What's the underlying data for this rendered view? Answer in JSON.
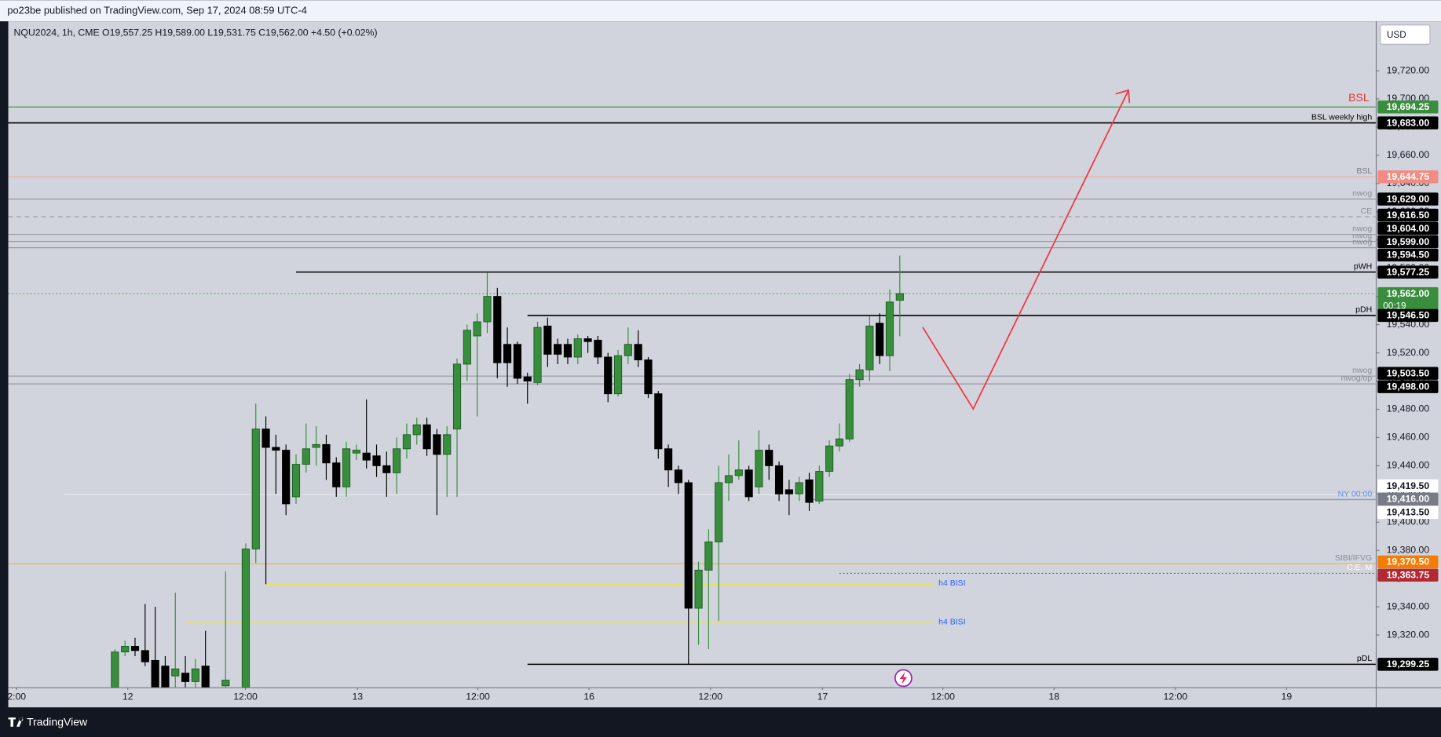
{
  "chart_data": {
    "type": "candlestick",
    "header": "po23be published on TradingView.com, Sep 17, 2024 08:59 UTC-4",
    "legend": "NQU2024, 1h, CME  O19,557.25  H19,589.00  L19,531.75  C19,562.00  +4.50 (+0.02%)",
    "currency": "USD",
    "footer": "TradingView",
    "annotations": [
      "BSL"
    ],
    "up_color": "#388e3c",
    "down_color": "#000000",
    "x": [
      0,
      1,
      2,
      3,
      4,
      5,
      6,
      7,
      8,
      9,
      11,
      13,
      14,
      15,
      16,
      17,
      18,
      19,
      20,
      21,
      22,
      23,
      24,
      25,
      26,
      27,
      28,
      29,
      30,
      31,
      32,
      33,
      34,
      35,
      36,
      37,
      38,
      39,
      40,
      41,
      42,
      43,
      44,
      45,
      46,
      47,
      48,
      49,
      50,
      51,
      52,
      53,
      54,
      55,
      56,
      57,
      58,
      59,
      60,
      61,
      62,
      63,
      64,
      65,
      66,
      67,
      68,
      69,
      70,
      71,
      72,
      73,
      74,
      75,
      76,
      77,
      78
    ],
    "open": [
      19283,
      19308,
      19312,
      19309,
      19302,
      19298,
      19291,
      19293,
      19287,
      19298,
      19284,
      19283,
      19381,
      19466,
      19453,
      19451,
      19418,
      19441,
      19453,
      19455,
      19442,
      19425,
      19449,
      19449,
      19447,
      19440,
      19435,
      19452,
      19462,
      19469,
      19462,
      19448,
      19466,
      19512,
      19532,
      19542,
      19560,
      19526,
      19526,
      19503,
      19499,
      19539,
      19526,
      19526,
      19517,
      19530,
      19529,
      19517,
      19491,
      19518,
      19526,
      19515,
      19491,
      19452,
      19437,
      19428,
      19339,
      19366,
      19386,
      19428,
      19433,
      19437,
      19425,
      19451,
      19440,
      19423,
      19420,
      19430,
      19415,
      19436,
      19454,
      19459,
      19501,
      19508,
      19541,
      19518,
      19557.25
    ],
    "high": [
      19310,
      19316,
      19318,
      19342,
      19340,
      19305,
      19350,
      19305,
      19303,
      19323,
      19365,
      19385,
      19484,
      19475,
      19462,
      19455,
      19448,
      19470,
      19468,
      19462,
      19446,
      19457,
      19455,
      19487,
      19455,
      19450,
      19460,
      19470,
      19474,
      19474,
      19466,
      19468,
      19516,
      19540,
      19548,
      19577,
      19566,
      19538,
      19528,
      19506,
      19542,
      19545,
      19530,
      19530,
      19533,
      19532,
      19532,
      19520,
      19522,
      19538,
      19536,
      19517,
      19493,
      19455,
      19440,
      19430,
      19372,
      19395,
      19440,
      19448,
      19458,
      19440,
      19465,
      19455,
      19443,
      19430,
      19432,
      19435,
      19440,
      19458,
      19470,
      19505,
      19512,
      19546,
      19548,
      19565,
      19589
    ],
    "low": [
      19280,
      19305,
      19305,
      19298,
      19280,
      19280,
      19283,
      19282,
      19283,
      19280,
      19280,
      19280,
      19371,
      19356,
      19420,
      19405,
      19413,
      19435,
      19440,
      19430,
      19418,
      19418,
      19444,
      19438,
      19432,
      19418,
      19420,
      19445,
      19455,
      19447,
      19405,
      19418,
      19418,
      19500,
      19475,
      19534,
      19502,
      19496,
      19498,
      19484,
      19497,
      19510,
      19512,
      19512,
      19512,
      19520,
      19512,
      19485,
      19489,
      19512,
      19510,
      19488,
      19445,
      19425,
      19420,
      19299.25,
      19313,
      19310,
      19330,
      19415,
      19430,
      19415,
      19420,
      19430,
      19415,
      19405,
      19415,
      19408,
      19413,
      19432,
      19450,
      19457,
      19496,
      19500,
      19512,
      19507,
      19531.75
    ],
    "close": [
      19308,
      19312,
      19309,
      19301,
      19283,
      19283,
      19296,
      19287,
      19296,
      19283,
      19288,
      19381,
      19466,
      19453,
      19451,
      19413,
      19441,
      19452,
      19455,
      19442,
      19425,
      19452,
      19451,
      19444,
      19440,
      19435,
      19452,
      19462,
      19469,
      19452,
      19448,
      19462,
      19512,
      19536,
      19542,
      19560,
      19513,
      19513,
      19502,
      19500,
      19538,
      19519,
      19519,
      19517,
      19530,
      19528,
      19517,
      19491,
      19518,
      19526,
      19515,
      19491,
      19452,
      19437,
      19428,
      19339,
      19366,
      19386,
      19428,
      19433,
      19437,
      19418,
      19451,
      19440,
      19420,
      19420,
      19428,
      19414,
      19436,
      19454,
      19459,
      19501,
      19508,
      19539,
      19518,
      19556,
      19562
    ],
    "xlim": [
      -10.6,
      125.3
    ],
    "ylim": [
      19283,
      19755
    ],
    "xticks": [
      {
        "value": -9.77,
        "label": "2:00"
      },
      {
        "value": 1.28,
        "label": "12"
      },
      {
        "value": 12.97,
        "label": "12:00"
      },
      {
        "value": 24.11,
        "label": "13"
      },
      {
        "value": 36.07,
        "label": "12:00"
      },
      {
        "value": 47.12,
        "label": "16"
      },
      {
        "value": 59.18,
        "label": "12:00"
      },
      {
        "value": 70.32,
        "label": "17"
      },
      {
        "value": 82.28,
        "label": "12:00"
      },
      {
        "value": 93.33,
        "label": "18"
      },
      {
        "value": 105.39,
        "label": "12:00"
      },
      {
        "value": 116.44,
        "label": "19"
      }
    ],
    "yticks": [
      {
        "value": 19320,
        "label": "19,320.00"
      },
      {
        "value": 19340,
        "label": "19,340.00"
      },
      {
        "value": 19360,
        "label": "19,360.00"
      },
      {
        "value": 19380,
        "label": "19,380.00"
      },
      {
        "value": 19400,
        "label": "19,400.00"
      },
      {
        "value": 19420,
        "label": "19,420.00"
      },
      {
        "value": 19440,
        "label": "19,440.00"
      },
      {
        "value": 19460,
        "label": "19,460.00"
      },
      {
        "value": 19480,
        "label": "19,480.00"
      },
      {
        "value": 19500,
        "label": "19,500.00"
      },
      {
        "value": 19520,
        "label": "19,520.00"
      },
      {
        "value": 19540,
        "label": "19,540.00"
      },
      {
        "value": 19560,
        "label": "19,560.00"
      },
      {
        "value": 19580,
        "label": "19,580.00"
      },
      {
        "value": 19600,
        "label": "19,600.00"
      },
      {
        "value": 19620,
        "label": "19,620.00"
      },
      {
        "value": 19640,
        "label": "19,640.00"
      },
      {
        "value": 19660,
        "label": "19,660.00"
      },
      {
        "value": 19680,
        "label": "19,680.00"
      },
      {
        "value": 19700,
        "label": "19,700.00"
      },
      {
        "value": 19720,
        "label": "19,720.00"
      }
    ],
    "grid": false,
    "levels": [
      {
        "value": 19694.25,
        "tag": "19,694.25",
        "color": "#388e3c",
        "style": "solid",
        "tag_color": "#388e3c",
        "tag_text": "#ffffff"
      },
      {
        "value": 19683,
        "tag": "19,683.00",
        "text": "BSL weekly high",
        "text_color": "#000000",
        "color": "#000000",
        "style": "solid",
        "tag_color": "#000000",
        "tag_text": "#ffffff"
      },
      {
        "value": 19644.75,
        "tag": "19,644.75",
        "text": "BSL",
        "text_color": "#787b86",
        "color": "#f4a7a0",
        "style": "solid",
        "tag_color": "#f28b82",
        "tag_text": "#ffffff"
      },
      {
        "value": 19629,
        "tag": "19,629.00",
        "text": "nwog",
        "text_color": "#8a8d96",
        "color": "#9598a1",
        "style": "solid",
        "tag_color": "#000000",
        "tag_text": "#ffffff"
      },
      {
        "value": 19616.5,
        "tag": "19,616.50",
        "text": "CE",
        "text_color": "#8a8d96",
        "color": "#9598a1",
        "style": "dashed",
        "tag_color": "#000000",
        "tag_text": "#ffffff"
      },
      {
        "value": 19604,
        "tag": "19,604.00",
        "text": "nwog",
        "text_color": "#8a8d96",
        "color": "#9598a1",
        "style": "solid",
        "tag_color": "#000000",
        "tag_text": "#ffffff"
      },
      {
        "value": 19599,
        "tag": "19,599.00",
        "text": "nwog",
        "text_color": "#8a8d96",
        "color": "#9598a1",
        "style": "solid",
        "tag_color": "#000000",
        "tag_text": "#ffffff"
      },
      {
        "value": 19594.5,
        "tag": "19,594.50",
        "text": "nwog",
        "text_color": "#8a8d96",
        "color": "#9598a1",
        "style": "solid",
        "tag_color": "#000000",
        "tag_text": "#ffffff"
      },
      {
        "value": 19577.25,
        "tag": "19,577.25",
        "text": "pWH",
        "text_color": "#000000",
        "color": "#000000",
        "style": "solid",
        "from": 18,
        "tag_color": "#000000",
        "tag_text": "#ffffff"
      },
      {
        "value": 19562,
        "tag": "19,562.00",
        "countdown": "00:19",
        "color": "#4caf50",
        "style": "dotted",
        "tag_color": "#388e3c",
        "tag_text": "#ffffff"
      },
      {
        "value": 19546.5,
        "tag": "19,546.50",
        "text": "pDH",
        "text_color": "#000000",
        "color": "#000000",
        "style": "solid",
        "from": 41,
        "tag_color": "#000000",
        "tag_text": "#ffffff"
      },
      {
        "value": 19503.5,
        "tag": "19,503.50",
        "text": "nwog",
        "text_color": "#8a8d96",
        "color": "#9598a1",
        "style": "solid",
        "tag_color": "#000000",
        "tag_text": "#ffffff"
      },
      {
        "value": 19498,
        "tag": "19,498.00",
        "text": "nwog/op",
        "text_color": "#8a8d96",
        "color": "#9598a1",
        "style": "solid",
        "tag_color": "#000000",
        "tag_text": "#ffffff"
      },
      {
        "value": 19419.5,
        "tag": "19,419.50",
        "color": "#e8e9ee",
        "style": "solid",
        "from": -5,
        "tag_color": "#ffffff",
        "tag_text": "#131722"
      },
      {
        "value": 19416,
        "tag": "19,416.00",
        "text": "NY 00:00",
        "text_color": "#5b8def",
        "color": "#9598a1",
        "style": "solid",
        "from": 69,
        "tag_color": "#787b86",
        "tag_text": "#ffffff"
      },
      {
        "value": 19413.5,
        "tag": "19,413.50",
        "style": "none",
        "tag_color": "#ffffff",
        "tag_text": "#131722"
      },
      {
        "value": 19370.5,
        "tag": "19,370.50",
        "text": "SIBI/IFVG",
        "text_color": "#8a8d96",
        "color": "#f5b041",
        "style": "solid",
        "tag_color": "#f57c00",
        "tag_text": "#ffffff"
      },
      {
        "value": 19363.75,
        "tag": "19,363.75",
        "text": "C.E. M",
        "text_color": "#ffffff",
        "color": "#555555",
        "style": "dotted",
        "from": 72,
        "tag_color": "#b22833",
        "tag_text": "#ffffff"
      },
      {
        "value": 19299.25,
        "tag": "19,299.25",
        "text": "pDL",
        "text_color": "#000000",
        "color": "#000000",
        "style": "solid",
        "from": 41,
        "tag_color": "#000000",
        "tag_text": "#ffffff"
      },
      {
        "value": 19356,
        "text": "h4 BISI",
        "text_color": "#2962ff",
        "color": "#f0e442",
        "style": "solid",
        "from": 15,
        "to": 81.3
      },
      {
        "value": 19328.5,
        "text": "h4 BISI",
        "text_color": "#2962ff",
        "color": "#f0e442",
        "style": "solid",
        "from": 7,
        "to": 81.3
      }
    ]
  }
}
